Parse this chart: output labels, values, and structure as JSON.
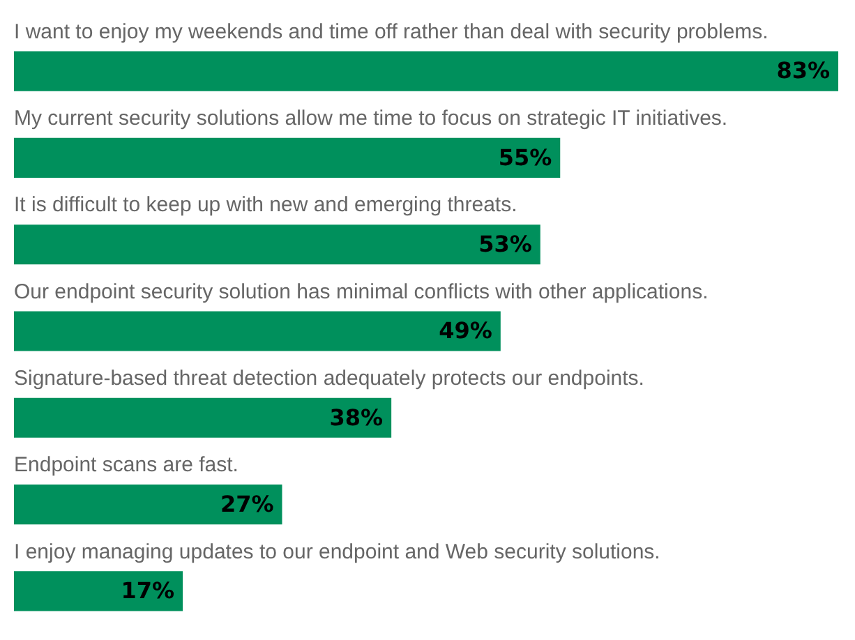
{
  "chart_data": {
    "type": "bar",
    "orientation": "horizontal",
    "categories": [
      "I want to enjoy my weekends and time off rather than deal with security problems.",
      "My current security solutions allow me time to focus on strategic IT initiatives.",
      "It is difficult to keep up with new and emerging threats.",
      "Our endpoint security solution has minimal conflicts with other applications.",
      "Signature-based threat detection adequately protects our endpoints.",
      "Endpoint scans are fast.",
      "I enjoy managing updates to our endpoint and Web security solutions."
    ],
    "values": [
      83,
      55,
      53,
      49,
      38,
      27,
      17
    ],
    "value_labels": [
      "83%",
      "55%",
      "53%",
      "49%",
      "38%",
      "27%",
      "17%"
    ],
    "color": "#00905c"
  }
}
